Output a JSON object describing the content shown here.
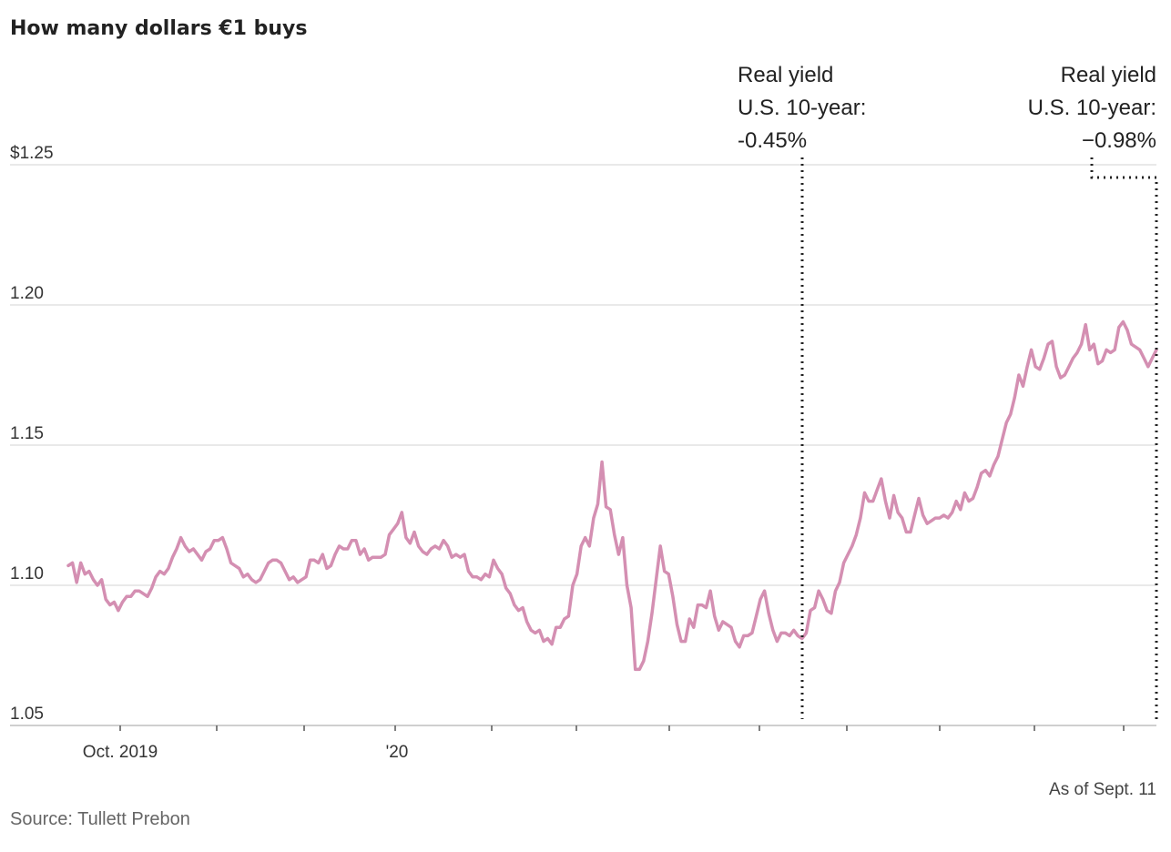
{
  "chart_data": {
    "type": "line",
    "title": "How many dollars €1 buys",
    "x_tick_labels": [
      "Oct. 2019",
      "'20"
    ],
    "y_ticks": [
      {
        "value": 1.25,
        "label": "$1.25"
      },
      {
        "value": 1.2,
        "label": "1.20"
      },
      {
        "value": 1.15,
        "label": "1.15"
      },
      {
        "value": 1.1,
        "label": "1.10"
      },
      {
        "value": 1.05,
        "label": "1.05"
      }
    ],
    "ylim": [
      1.05,
      1.25
    ],
    "grid": true,
    "line_color": "#d48fb2",
    "series": [
      {
        "values": [
          1.107,
          1.108,
          1.101,
          1.108,
          1.104,
          1.105,
          1.102,
          1.1,
          1.102,
          1.095,
          1.093,
          1.094,
          1.091,
          1.094,
          1.096,
          1.096,
          1.098,
          1.098,
          1.097,
          1.096,
          1.099,
          1.103,
          1.105,
          1.104,
          1.106,
          1.11,
          1.113,
          1.117,
          1.114,
          1.112,
          1.113,
          1.111,
          1.109,
          1.112,
          1.113,
          1.116,
          1.116,
          1.117,
          1.113,
          1.108,
          1.107,
          1.106,
          1.103,
          1.104,
          1.102,
          1.101,
          1.102,
          1.105,
          1.108,
          1.109,
          1.109,
          1.108,
          1.105,
          1.102,
          1.103,
          1.101,
          1.102,
          1.103,
          1.109,
          1.109,
          1.108,
          1.111,
          1.106,
          1.107,
          1.111,
          1.114,
          1.113,
          1.113,
          1.116,
          1.116,
          1.111,
          1.113,
          1.109,
          1.11,
          1.11,
          1.11,
          1.111,
          1.118,
          1.12,
          1.122,
          1.126,
          1.117,
          1.115,
          1.119,
          1.114,
          1.112,
          1.111,
          1.113,
          1.114,
          1.113,
          1.116,
          1.114,
          1.11,
          1.111,
          1.11,
          1.111,
          1.105,
          1.103,
          1.103,
          1.102,
          1.104,
          1.103,
          1.109,
          1.106,
          1.104,
          1.099,
          1.097,
          1.093,
          1.091,
          1.092,
          1.087,
          1.084,
          1.083,
          1.084,
          1.08,
          1.081,
          1.079,
          1.085,
          1.085,
          1.088,
          1.089,
          1.1,
          1.104,
          1.114,
          1.117,
          1.114,
          1.124,
          1.129,
          1.144,
          1.128,
          1.127,
          1.118,
          1.111,
          1.117,
          1.1,
          1.092,
          1.07,
          1.07,
          1.073,
          1.08,
          1.09,
          1.102,
          1.114,
          1.105,
          1.104,
          1.096,
          1.086,
          1.08,
          1.08,
          1.088,
          1.085,
          1.093,
          1.093,
          1.092,
          1.098,
          1.089,
          1.084,
          1.087,
          1.086,
          1.085,
          1.08,
          1.078,
          1.082,
          1.082,
          1.083,
          1.089,
          1.095,
          1.098,
          1.09,
          1.084,
          1.08,
          1.083,
          1.083,
          1.082,
          1.084,
          1.082,
          1.081,
          1.083,
          1.091,
          1.092,
          1.098,
          1.095,
          1.091,
          1.09,
          1.098,
          1.101,
          1.108,
          1.111,
          1.114,
          1.118,
          1.124,
          1.133,
          1.13,
          1.13,
          1.134,
          1.138,
          1.13,
          1.124,
          1.132,
          1.126,
          1.124,
          1.119,
          1.119,
          1.125,
          1.131,
          1.125,
          1.122,
          1.123,
          1.124,
          1.124,
          1.125,
          1.124,
          1.126,
          1.13,
          1.127,
          1.133,
          1.13,
          1.131,
          1.135,
          1.14,
          1.141,
          1.139,
          1.143,
          1.146,
          1.152,
          1.158,
          1.161,
          1.167,
          1.175,
          1.171,
          1.178,
          1.184,
          1.178,
          1.177,
          1.181,
          1.186,
          1.187,
          1.178,
          1.174,
          1.175,
          1.178,
          1.181,
          1.183,
          1.186,
          1.193,
          1.184,
          1.186,
          1.179,
          1.18,
          1.184,
          1.183,
          1.184,
          1.192,
          1.194,
          1.191,
          1.186,
          1.185,
          1.184,
          1.181,
          1.178,
          1.181,
          1.184
        ]
      }
    ],
    "annotations": [
      {
        "lines": [
          "Real yield",
          "U.S. 10-year:",
          "-0.45%"
        ],
        "style": "dotted vertical line"
      },
      {
        "lines": [
          "Real yield",
          "U.S. 10-year:",
          "−0.98%"
        ],
        "style": "dotted bracket line"
      }
    ],
    "note": "As of Sept. 11",
    "source": "Source: Tullett Prebon"
  }
}
